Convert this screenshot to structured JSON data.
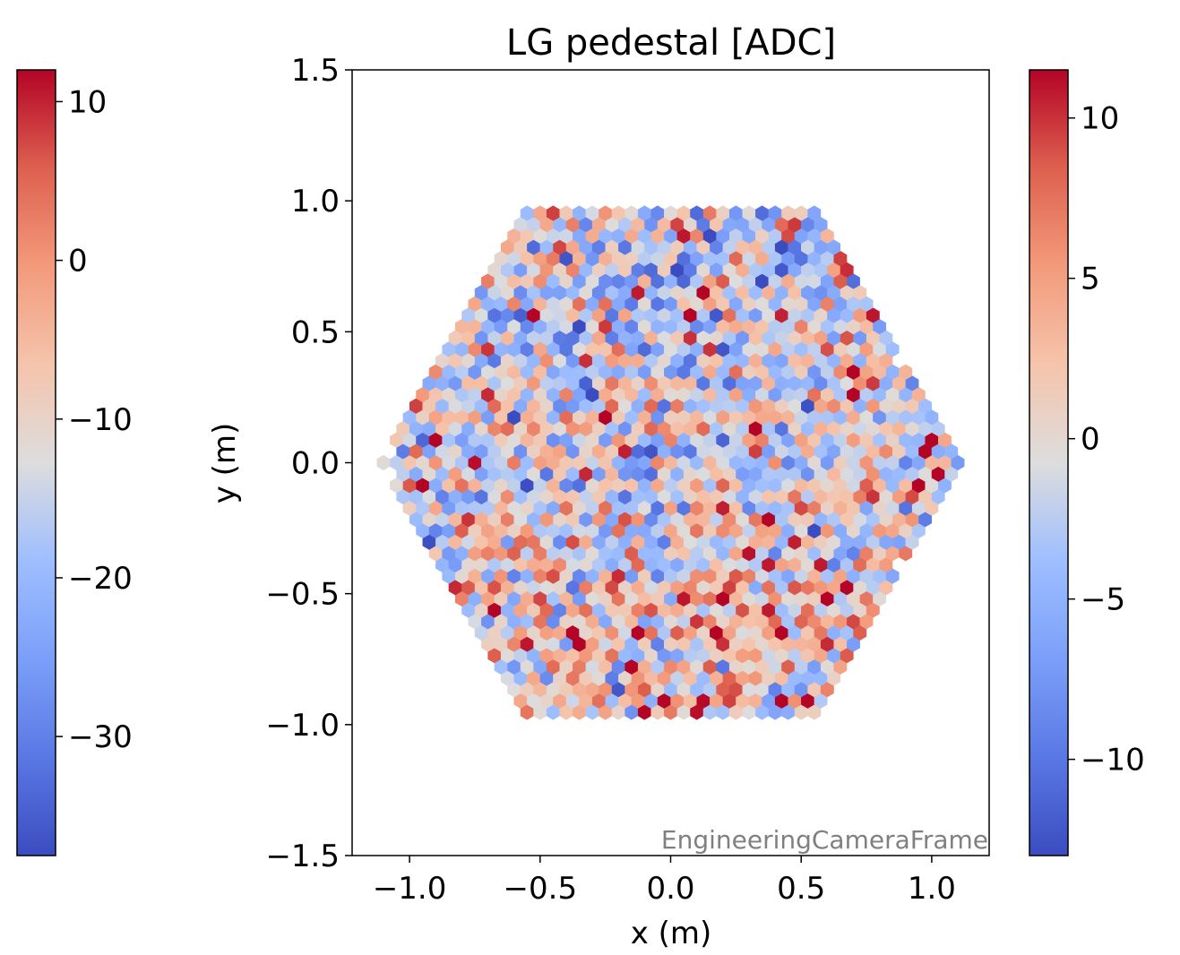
{
  "chart_data": {
    "type": "heatmap",
    "title": "LG pedestal [ADC]",
    "xlabel": "x  (m)",
    "ylabel": "y  (m)",
    "xlim": [
      -1.22,
      1.22
    ],
    "ylim": [
      -1.5,
      1.5
    ],
    "x_ticks": [
      -1.0,
      -0.5,
      0.0,
      0.5,
      1.0
    ],
    "x_tick_labels": [
      "−1.0",
      "−0.5",
      "0.0",
      "0.5",
      "1.0"
    ],
    "y_ticks": [
      -1.5,
      -1.0,
      -0.5,
      0.0,
      0.5,
      1.0,
      1.5
    ],
    "y_tick_labels": [
      "−1.5",
      "−1.0",
      "−0.5",
      "0.0",
      "0.5",
      "1.0",
      "1.5"
    ],
    "frame_label": "EngineeringCameraFrame",
    "camera": {
      "shape": "hexagon",
      "pixel_pitch_m": 0.05,
      "outer_radius_m": 1.1,
      "pixel_value_range": [
        -13,
        11.5
      ],
      "note_on_values": "per-pixel values approximated; spatially noisy pattern centred near 0 ADC"
    },
    "colorbars": [
      {
        "side": "left",
        "cmap": "coolwarm",
        "range": [
          -37.5,
          12
        ],
        "ticks": [
          10,
          0,
          -10,
          -20,
          -30
        ],
        "tick_labels": [
          "10",
          "0",
          "−10",
          "−20",
          "−30"
        ]
      },
      {
        "side": "right",
        "cmap": "coolwarm",
        "range": [
          -13,
          11.5
        ],
        "ticks": [
          10,
          5,
          0,
          -5,
          -10
        ],
        "tick_labels": [
          "10",
          "5",
          "0",
          "−5",
          "−10"
        ]
      }
    ],
    "colors": {
      "cold": "#3b4cc0",
      "neutral": "#dddddd",
      "hot": "#b40426"
    }
  }
}
